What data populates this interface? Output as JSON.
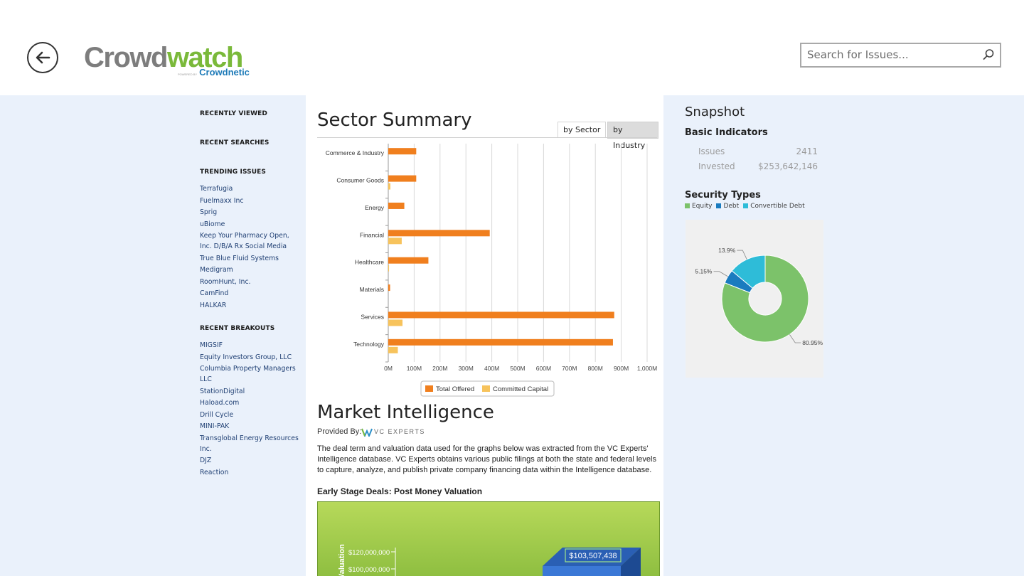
{
  "header": {
    "logo_text_main": "Crowd",
    "logo_text_accent": "watch",
    "logo_powered_by": "POWERED BY",
    "logo_sub": "Crowdnetic",
    "search_placeholder": "Search for Issues..."
  },
  "sidebar": {
    "recently_viewed": "RECENTLY VIEWED",
    "recent_searches": "RECENT SEARCHES",
    "trending_title": "TRENDING ISSUES",
    "trending": [
      "Terrafugia",
      "Fuelmaxx Inc",
      "Sprig",
      "uBiome",
      "Keep Your Pharmacy Open, Inc. D/B/A Rx Social Media",
      "True Blue Fluid Systems",
      "Medigram",
      "RoomHunt, Inc.",
      "CamFind",
      "HALKAR"
    ],
    "breakouts_title": "RECENT BREAKOUTS",
    "breakouts": [
      "MIGSIF",
      "Equity Investors Group, LLC",
      "Columbia Property Managers LLC",
      "StationDigital",
      "Haload.com",
      "Drill Cycle",
      "MINI-PAK",
      "Transglobal Energy Resources Inc.",
      "DJZ",
      "Reaction"
    ]
  },
  "sector_summary": {
    "title": "Sector Summary",
    "tab_sector": "by Sector",
    "tab_industry": "by Industry"
  },
  "chart_data": [
    {
      "type": "bar",
      "orientation": "horizontal",
      "categories": [
        "Commerce & Industry",
        "Consumer Goods",
        "Energy",
        "Financial",
        "Healthcare",
        "Materials",
        "Services",
        "Technology"
      ],
      "series": [
        {
          "name": "Total Offered",
          "color": "#f07f1e",
          "values": [
            108,
            108,
            62,
            392,
            155,
            7,
            873,
            868
          ]
        },
        {
          "name": "Committed Capital",
          "color": "#f7c35c",
          "values": [
            0,
            8,
            0,
            52,
            3,
            0,
            55,
            37
          ]
        }
      ],
      "xticks": [
        "0M",
        "100M",
        "200M",
        "300M",
        "400M",
        "500M",
        "600M",
        "700M",
        "800M",
        "900M",
        "1,000M"
      ],
      "xlim": [
        0,
        1000
      ],
      "grid": true,
      "legend_position": "bottom"
    },
    {
      "type": "pie",
      "title": "Security Types",
      "labels": [
        "Equity",
        "Debt",
        "Convertible Debt"
      ],
      "values": [
        80.95,
        5.15,
        13.9
      ],
      "value_labels": [
        "80.95%",
        "5.15%",
        "13.9%"
      ],
      "colors": [
        "#7cc26a",
        "#1a7bbf",
        "#2ebcd8"
      ]
    }
  ],
  "market_intelligence": {
    "title": "Market Intelligence",
    "provided_by": "Provided By:",
    "provider_name": "VC EXPERTS",
    "body": "The deal term and valuation data used for the graphs below was extracted from the VC Experts' Intelligence database. VC Experts obtains various public filings at both the state and federal levels to capture, analyze, and publish private company financing data within the Intelligence database.",
    "early_stage_title": "Early Stage Deals: Post Money Valuation",
    "early_chart": {
      "ytick_1": "$120,000,000",
      "ytick_2": "$100,000,000",
      "ylabel": "Valuation",
      "bar_label": "$103,507,438"
    }
  },
  "snapshot": {
    "title": "Snapshot",
    "basic_indicators": "Basic Indicators",
    "issues_label": "Issues",
    "issues_value": "2411",
    "invested_label": "Invested",
    "invested_value": "$253,642,146",
    "security_types_title": "Security Types",
    "legend": [
      "Equity",
      "Debt",
      "Convertible Debt"
    ]
  }
}
